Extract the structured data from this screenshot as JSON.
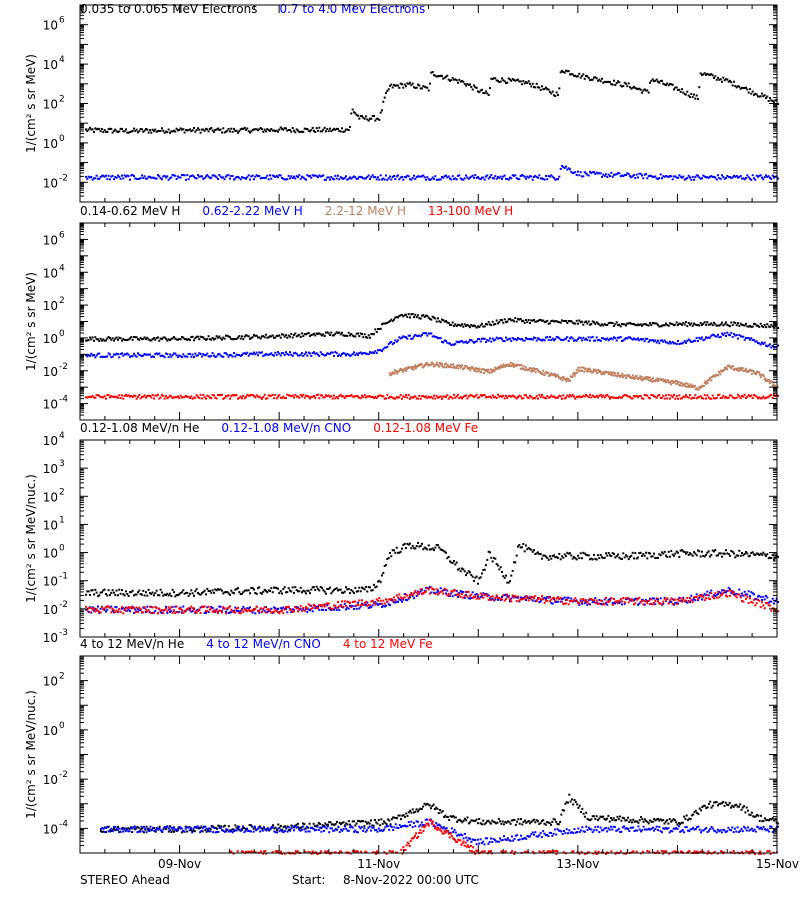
{
  "footer": {
    "spacecraft": "STEREO Ahead",
    "start_label": "Start:",
    "start_value": "8-Nov-2022 00:00 UTC"
  },
  "x_axis": {
    "range_days": [
      0,
      7
    ],
    "ticks": [
      {
        "day": 1,
        "label": "09-Nov"
      },
      {
        "day": 3,
        "label": "11-Nov"
      },
      {
        "day": 5,
        "label": "13-Nov"
      },
      {
        "day": 7,
        "label": "15-Nov"
      }
    ]
  },
  "chart_data": [
    {
      "type": "scatter",
      "ylabel": "1/(cm² s sr MeV)",
      "ylog": true,
      "ylim": [
        0.001,
        10000000
      ],
      "yticks": [
        {
          "value": 0.01,
          "base": "10",
          "exp": "-2"
        },
        {
          "value": 1,
          "base": "10",
          "exp": "0"
        },
        {
          "value": 100,
          "base": "10",
          "exp": "2"
        },
        {
          "value": 10000,
          "base": "10",
          "exp": "4"
        },
        {
          "value": 1000000,
          "base": "10",
          "exp": "6"
        }
      ],
      "legend": [
        {
          "label": "0.035 to 0.065 MeV Electrons",
          "color": "#000000"
        },
        {
          "label": "0.7 to 4.0 Mev Electrons",
          "color": "#0000ff"
        }
      ],
      "series": [
        {
          "color": "#000000",
          "points": [
            [
              0.05,
              5
            ],
            [
              0.5,
              4.5
            ],
            [
              1,
              5
            ],
            [
              1.5,
              4.8
            ],
            [
              2,
              5.2
            ],
            [
              2.5,
              5
            ],
            [
              2.7,
              5.5
            ],
            [
              2.72,
              60
            ],
            [
              2.8,
              20
            ],
            [
              3.0,
              20
            ],
            [
              3.05,
              200
            ],
            [
              3.1,
              800
            ],
            [
              3.3,
              1000
            ],
            [
              3.5,
              600
            ],
            [
              3.52,
              4000
            ],
            [
              3.8,
              1500
            ],
            [
              3.82,
              1500
            ],
            [
              4.0,
              500
            ],
            [
              4.1,
              300
            ],
            [
              4.12,
              2000
            ],
            [
              4.5,
              1200
            ],
            [
              4.8,
              300
            ],
            [
              4.82,
              6000
            ],
            [
              5.0,
              3000
            ],
            [
              5.5,
              900
            ],
            [
              5.7,
              400
            ],
            [
              5.72,
              2000
            ],
            [
              6.0,
              600
            ],
            [
              6.2,
              200
            ],
            [
              6.22,
              4000
            ],
            [
              6.5,
              1500
            ],
            [
              7.0,
              120
            ]
          ]
        },
        {
          "color": "#0000ff",
          "points": [
            [
              0.05,
              0.02
            ],
            [
              1,
              0.02
            ],
            [
              2,
              0.02
            ],
            [
              3,
              0.02
            ],
            [
              4,
              0.02
            ],
            [
              4.8,
              0.02
            ],
            [
              4.82,
              0.08
            ],
            [
              5.0,
              0.03
            ],
            [
              6,
              0.02
            ],
            [
              7,
              0.02
            ]
          ]
        }
      ]
    },
    {
      "type": "scatter",
      "ylabel": "1/(cm² s sr MeV)",
      "ylog": true,
      "ylim": [
        1e-05,
        10000000
      ],
      "yticks": [
        {
          "value": 0.0001,
          "base": "10",
          "exp": "-4"
        },
        {
          "value": 0.01,
          "base": "10",
          "exp": "-2"
        },
        {
          "value": 1,
          "base": "10",
          "exp": "0"
        },
        {
          "value": 100,
          "base": "10",
          "exp": "2"
        },
        {
          "value": 10000,
          "base": "10",
          "exp": "4"
        },
        {
          "value": 1000000,
          "base": "10",
          "exp": "6"
        }
      ],
      "legend": [
        {
          "label": "0.14-0.62 MeV H",
          "color": "#000000"
        },
        {
          "label": "0.62-2.22 MeV H",
          "color": "#0000ff"
        },
        {
          "label": "2.2-12 MeV H",
          "color": "#c08060"
        },
        {
          "label": "13-100 MeV H",
          "color": "#ff0000"
        }
      ],
      "series": [
        {
          "color": "#000000",
          "points": [
            [
              0.05,
              1
            ],
            [
              1,
              1
            ],
            [
              2,
              1.5
            ],
            [
              2.5,
              2
            ],
            [
              2.7,
              2
            ],
            [
              2.9,
              1.5
            ],
            [
              3.0,
              5
            ],
            [
              3.2,
              30
            ],
            [
              3.5,
              20
            ],
            [
              3.7,
              8
            ],
            [
              4.0,
              6
            ],
            [
              4.3,
              15
            ],
            [
              4.5,
              12
            ],
            [
              5,
              10
            ],
            [
              5.5,
              7
            ],
            [
              6,
              8
            ],
            [
              6.5,
              8
            ],
            [
              7,
              6
            ]
          ]
        },
        {
          "color": "#0000ff",
          "points": [
            [
              0.05,
              0.1
            ],
            [
              1,
              0.1
            ],
            [
              2,
              0.12
            ],
            [
              2.8,
              0.12
            ],
            [
              3.0,
              0.2
            ],
            [
              3.2,
              1
            ],
            [
              3.5,
              2
            ],
            [
              3.7,
              0.5
            ],
            [
              4.0,
              0.8
            ],
            [
              4.3,
              1
            ],
            [
              5,
              1
            ],
            [
              5.5,
              1
            ],
            [
              6.0,
              0.6
            ],
            [
              6.5,
              2
            ],
            [
              7,
              0.3
            ]
          ]
        },
        {
          "color": "#c08060",
          "points": [
            [
              3.1,
              0.008
            ],
            [
              3.5,
              0.03
            ],
            [
              3.8,
              0.02
            ],
            [
              4.1,
              0.01
            ],
            [
              4.3,
              0.03
            ],
            [
              4.5,
              0.015
            ],
            [
              4.7,
              0.007
            ],
            [
              4.9,
              0.003
            ],
            [
              5.0,
              0.015
            ],
            [
              5.5,
              0.005
            ],
            [
              6.0,
              0.002
            ],
            [
              6.2,
              0.001
            ],
            [
              6.5,
              0.02
            ],
            [
              6.8,
              0.008
            ],
            [
              7,
              0.001
            ]
          ]
        },
        {
          "color": "#ff0000",
          "points": [
            [
              0.05,
              0.0003
            ],
            [
              1,
              0.0003
            ],
            [
              2,
              0.0003
            ],
            [
              3,
              0.0003
            ],
            [
              4,
              0.0003
            ],
            [
              5,
              0.0003
            ],
            [
              6,
              0.0003
            ],
            [
              7,
              0.0003
            ]
          ]
        }
      ]
    },
    {
      "type": "scatter",
      "ylabel": "1/(cm² s sr MeV/nuc.)",
      "ylog": true,
      "ylim": [
        0.001,
        10000
      ],
      "yticks": [
        {
          "value": 0.001,
          "base": "10",
          "exp": "-3"
        },
        {
          "value": 0.01,
          "base": "10",
          "exp": "-2"
        },
        {
          "value": 0.1,
          "base": "10",
          "exp": "-1"
        },
        {
          "value": 1,
          "base": "10",
          "exp": "0"
        },
        {
          "value": 10,
          "base": "10",
          "exp": "1"
        },
        {
          "value": 100,
          "base": "10",
          "exp": "2"
        },
        {
          "value": 1000,
          "base": "10",
          "exp": "3"
        },
        {
          "value": 10000,
          "base": "10",
          "exp": "4"
        }
      ],
      "legend": [
        {
          "label": "0.12-1.08 MeV/n He",
          "color": "#000000"
        },
        {
          "label": "0.12-1.08 MeV/n CNO",
          "color": "#0000ff"
        },
        {
          "label": "0.12-1.08 MeV Fe",
          "color": "#ff0000"
        }
      ],
      "series": [
        {
          "color": "#000000",
          "points": [
            [
              0.05,
              0.04
            ],
            [
              1,
              0.04
            ],
            [
              2,
              0.05
            ],
            [
              2.9,
              0.05
            ],
            [
              3.0,
              0.1
            ],
            [
              3.1,
              1
            ],
            [
              3.3,
              2
            ],
            [
              3.6,
              1.5
            ],
            [
              3.8,
              0.3
            ],
            [
              4.0,
              0.1
            ],
            [
              4.1,
              1
            ],
            [
              4.3,
              0.1
            ],
            [
              4.4,
              2
            ],
            [
              4.6,
              0.8
            ],
            [
              5,
              0.8
            ],
            [
              5.5,
              0.8
            ],
            [
              6,
              1
            ],
            [
              6.5,
              1
            ],
            [
              7,
              0.8
            ]
          ]
        },
        {
          "color": "#0000ff",
          "points": [
            [
              0.05,
              0.01
            ],
            [
              1,
              0.01
            ],
            [
              2,
              0.01
            ],
            [
              3,
              0.015
            ],
            [
              3.5,
              0.05
            ],
            [
              4,
              0.03
            ],
            [
              5,
              0.02
            ],
            [
              6,
              0.02
            ],
            [
              6.5,
              0.05
            ],
            [
              7,
              0.02
            ]
          ]
        },
        {
          "color": "#ff0000",
          "points": [
            [
              0.05,
              0.01
            ],
            [
              1,
              0.01
            ],
            [
              2,
              0.01
            ],
            [
              3,
              0.02
            ],
            [
              3.5,
              0.05
            ],
            [
              4,
              0.03
            ],
            [
              5,
              0.02
            ],
            [
              6,
              0.02
            ],
            [
              6.5,
              0.04
            ],
            [
              7,
              0.01
            ]
          ]
        }
      ]
    },
    {
      "type": "scatter",
      "ylabel": "1/(cm² s sr MeV/nuc.)",
      "ylog": true,
      "ylim": [
        1e-05,
        1000
      ],
      "yticks": [
        {
          "value": 0.0001,
          "base": "10",
          "exp": "-4"
        },
        {
          "value": 0.01,
          "base": "10",
          "exp": "-2"
        },
        {
          "value": 1,
          "base": "10",
          "exp": "0"
        },
        {
          "value": 100,
          "base": "10",
          "exp": "2"
        }
      ],
      "legend": [
        {
          "label": "4 to 12 MeV/n He",
          "color": "#000000"
        },
        {
          "label": "4 to 12 MeV/n CNO",
          "color": "#0000ff"
        },
        {
          "label": "4 to 12 MeV Fe",
          "color": "#ff0000"
        }
      ],
      "series": [
        {
          "color": "#000000",
          "points": [
            [
              0.2,
              0.0001
            ],
            [
              1,
              0.0001
            ],
            [
              2,
              0.00012
            ],
            [
              3.1,
              0.0002
            ],
            [
              3.3,
              0.0005
            ],
            [
              3.5,
              0.001
            ],
            [
              3.7,
              0.0003
            ],
            [
              4,
              0.0002
            ],
            [
              4.8,
              0.0002
            ],
            [
              4.9,
              0.002
            ],
            [
              5.1,
              0.0003
            ],
            [
              6,
              0.0002
            ],
            [
              6.1,
              0.0003
            ],
            [
              6.3,
              0.001
            ],
            [
              6.6,
              0.001
            ],
            [
              6.8,
              0.0003
            ],
            [
              7,
              0.0002
            ]
          ]
        },
        {
          "color": "#0000ff",
          "points": [
            [
              0.2,
              0.0001
            ],
            [
              1,
              0.0001
            ],
            [
              2,
              0.0001
            ],
            [
              3,
              0.0001
            ],
            [
              3.5,
              0.0002
            ],
            [
              4,
              3e-05
            ],
            [
              5,
              0.0001
            ],
            [
              6,
              0.0001
            ],
            [
              7,
              0.0001
            ]
          ]
        },
        {
          "color": "#ff0000",
          "points": [
            [
              1.5,
              1e-05
            ],
            [
              3.2,
              1e-05
            ],
            [
              3.5,
              0.0002
            ],
            [
              4,
              1e-05
            ],
            [
              5,
              1e-05
            ],
            [
              6,
              1e-05
            ],
            [
              7,
              1e-05
            ]
          ]
        }
      ]
    }
  ]
}
